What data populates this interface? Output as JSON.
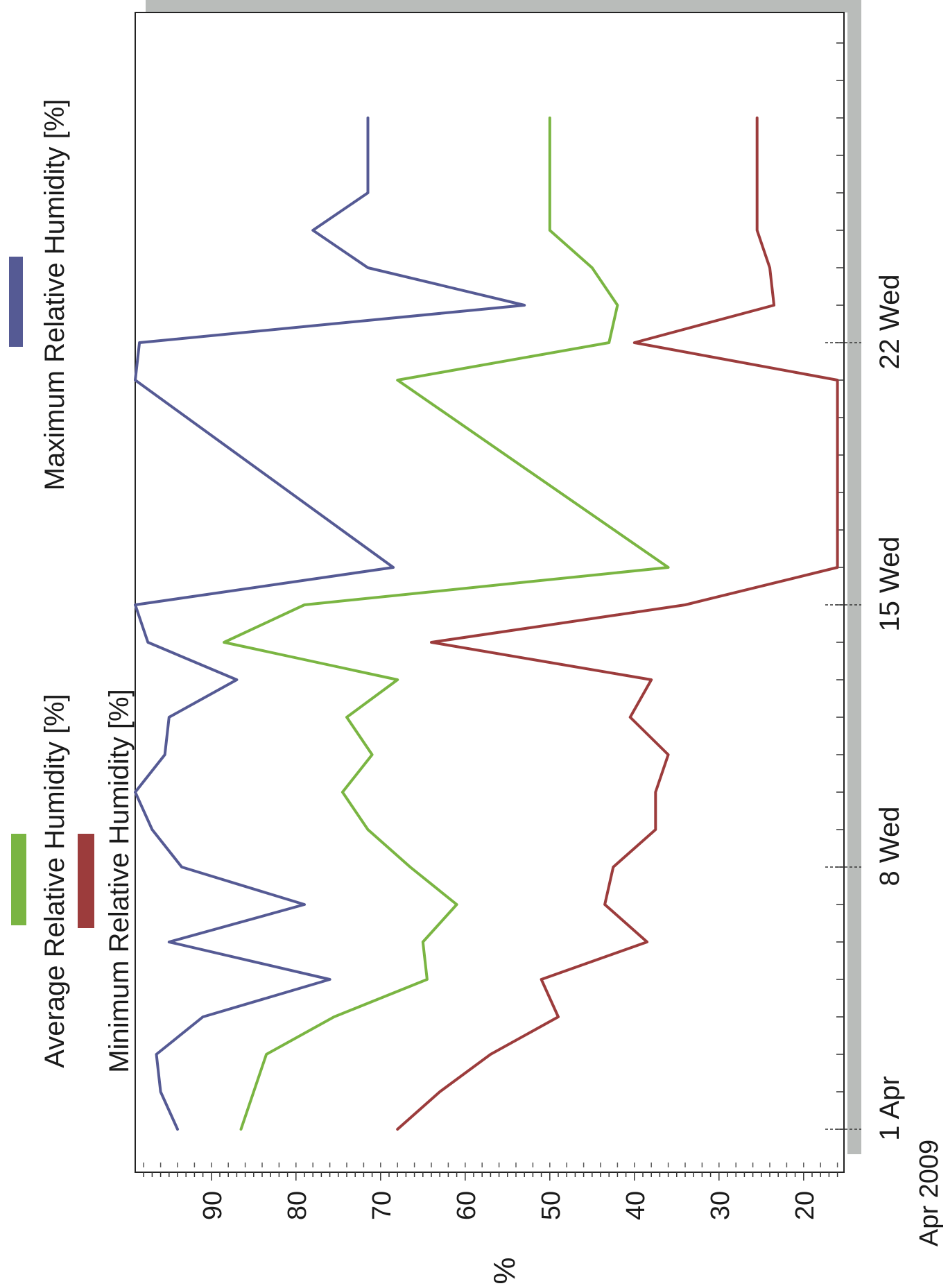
{
  "chart_data": {
    "type": "line",
    "orientation": "rotated-90-clockwise",
    "ylabel": "%",
    "xlabel": "Apr 2009",
    "ylim": [
      15,
      99
    ],
    "xlim": [
      1,
      30
    ],
    "y_ticks": [
      90,
      80,
      70,
      60,
      50,
      40,
      30,
      20
    ],
    "x_ticks": [
      {
        "day": 1,
        "label": "1 Apr"
      },
      {
        "day": 8,
        "label": "8 Wed"
      },
      {
        "day": 15,
        "label": "15 Wed"
      },
      {
        "day": 22,
        "label": "22 Wed"
      }
    ],
    "legend": [
      {
        "name": "Maximum Relative Humidity [%]",
        "color": "#555a94"
      },
      {
        "name": "Average Relative Humidity [%]",
        "color": "#7ab542"
      },
      {
        "name": "Minimum Relative Humidity [%]",
        "color": "#9c3c3c"
      }
    ],
    "series": [
      {
        "name": "Maximum Relative Humidity [%]",
        "color": "#555a94",
        "x": [
          1,
          2,
          3,
          4,
          5,
          6,
          7,
          8,
          9,
          10,
          11,
          12,
          13,
          14,
          15,
          16,
          21,
          22,
          23,
          24,
          25,
          26,
          27,
          28
        ],
        "values": [
          94,
          96,
          96.5,
          91,
          76,
          95,
          79,
          93.5,
          97,
          99,
          95.5,
          95,
          87,
          97.5,
          99,
          68.5,
          99,
          98.5,
          53,
          71.5,
          78,
          71.5,
          71.5,
          71.5
        ]
      },
      {
        "name": "Average Relative Humidity [%]",
        "color": "#7ab542",
        "x": [
          1,
          2,
          3,
          4,
          5,
          6,
          7,
          8,
          9,
          10,
          11,
          12,
          13,
          14,
          15,
          16,
          21,
          22,
          23,
          24,
          25,
          26,
          27,
          28
        ],
        "values": [
          86.5,
          85,
          83.5,
          75.5,
          64.5,
          65,
          61,
          66.5,
          71.5,
          74.5,
          71,
          74,
          68,
          88.5,
          79,
          36,
          68,
          43,
          42,
          45,
          50,
          50,
          50,
          50
        ]
      },
      {
        "name": "Minimum Relative Humidity [%]",
        "color": "#9c3c3c",
        "x": [
          1,
          2,
          3,
          4,
          5,
          6,
          7,
          8,
          9,
          10,
          11,
          12,
          13,
          14,
          15,
          16,
          17,
          18,
          19,
          20,
          21,
          22,
          23,
          24,
          25,
          26,
          27,
          28
        ],
        "values": [
          68,
          63,
          57,
          49,
          51,
          38.5,
          43.5,
          42.5,
          37.5,
          37.5,
          36,
          40.5,
          38,
          64,
          34,
          16,
          16,
          16,
          16,
          16,
          16,
          40,
          23.5,
          24,
          25.5,
          25.5,
          25.5,
          25.5
        ]
      }
    ],
    "grid": false
  }
}
